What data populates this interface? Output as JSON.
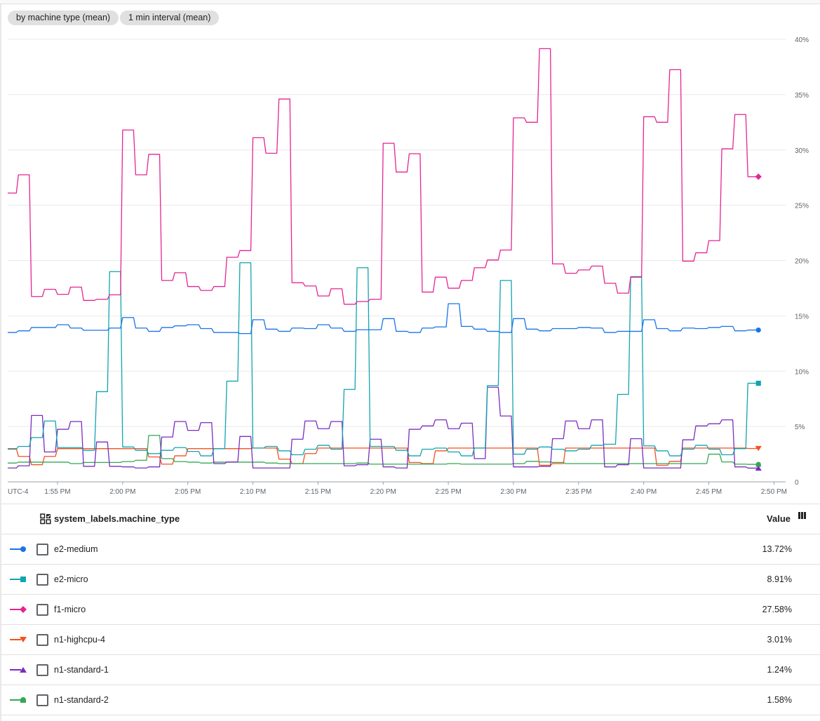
{
  "chips": [
    "by machine type (mean)",
    "1 min interval (mean)"
  ],
  "legend": {
    "column_title": "system_labels.machine_type",
    "value_title": "Value",
    "rows": [
      {
        "name": "e2-medium",
        "value": "13.72%",
        "color": "#1a73e8",
        "marker": "circle"
      },
      {
        "name": "e2-micro",
        "value": "8.91%",
        "color": "#12a4af",
        "marker": "square"
      },
      {
        "name": "f1-micro",
        "value": "27.58%",
        "color": "#e52592",
        "marker": "diamond"
      },
      {
        "name": "n1-highcpu-4",
        "value": "3.01%",
        "color": "#f4511e",
        "marker": "triangle-down"
      },
      {
        "name": "n1-standard-1",
        "value": "1.24%",
        "color": "#7b2cbf",
        "marker": "triangle-up"
      },
      {
        "name": "n1-standard-2",
        "value": "1.58%",
        "color": "#34a853",
        "marker": "tombstone"
      }
    ]
  },
  "chart_data": {
    "type": "line",
    "interpolation": "step",
    "timezone_label": "UTC-4",
    "x_tick_labels": [
      "1:55 PM",
      "2:00 PM",
      "2:05 PM",
      "2:10 PM",
      "2:15 PM",
      "2:20 PM",
      "2:25 PM",
      "2:30 PM",
      "2:35 PM",
      "2:40 PM",
      "2:45 PM",
      "2:50 PM"
    ],
    "y_tick_labels": [
      "0",
      "5%",
      "10%",
      "15%",
      "20%",
      "25%",
      "30%",
      "35%",
      "40%"
    ],
    "ylim": [
      0,
      40
    ],
    "y_unit": "%",
    "grid": true,
    "legend_placement": "bottom table",
    "x": [
      "1:51 PM",
      "1:52 PM",
      "1:53 PM",
      "1:54 PM",
      "1:55 PM",
      "1:56 PM",
      "1:57 PM",
      "1:58 PM",
      "1:59 PM",
      "2:00 PM",
      "2:01 PM",
      "2:02 PM",
      "2:03 PM",
      "2:04 PM",
      "2:05 PM",
      "2:06 PM",
      "2:07 PM",
      "2:08 PM",
      "2:09 PM",
      "2:10 PM",
      "2:11 PM",
      "2:12 PM",
      "2:13 PM",
      "2:14 PM",
      "2:15 PM",
      "2:16 PM",
      "2:17 PM",
      "2:18 PM",
      "2:19 PM",
      "2:20 PM",
      "2:21 PM",
      "2:22 PM",
      "2:23 PM",
      "2:24 PM",
      "2:25 PM",
      "2:26 PM",
      "2:27 PM",
      "2:28 PM",
      "2:29 PM",
      "2:30 PM",
      "2:31 PM",
      "2:32 PM",
      "2:33 PM",
      "2:34 PM",
      "2:35 PM",
      "2:36 PM",
      "2:37 PM",
      "2:38 PM",
      "2:39 PM",
      "2:40 PM",
      "2:41 PM",
      "2:42 PM",
      "2:43 PM",
      "2:44 PM",
      "2:45 PM",
      "2:46 PM",
      "2:47 PM",
      "2:48 PM"
    ],
    "series": [
      {
        "name": "e2-medium",
        "values": [
          13.5,
          13.65,
          13.95,
          13.95,
          14.2,
          13.9,
          13.7,
          13.7,
          13.9,
          14.85,
          13.9,
          13.6,
          13.95,
          14.1,
          14.2,
          13.85,
          13.5,
          13.5,
          13.4,
          14.65,
          13.8,
          13.6,
          13.9,
          13.85,
          14.2,
          13.9,
          13.6,
          13.75,
          13.75,
          14.75,
          13.6,
          13.5,
          13.9,
          14.0,
          16.1,
          14.05,
          13.8,
          13.6,
          13.5,
          14.75,
          13.8,
          13.65,
          13.85,
          13.85,
          13.95,
          13.9,
          13.5,
          13.6,
          13.6,
          14.65,
          13.85,
          13.65,
          13.9,
          13.85,
          13.95,
          14.05,
          13.65,
          13.72
        ]
      },
      {
        "name": "e2-micro",
        "values": [
          2.95,
          3.2,
          4.0,
          5.5,
          3.1,
          3.1,
          2.85,
          8.15,
          19.0,
          3.15,
          2.85,
          2.55,
          2.85,
          3.1,
          2.75,
          2.35,
          3.0,
          9.1,
          19.8,
          3.05,
          3.2,
          2.8,
          2.45,
          2.95,
          3.3,
          2.95,
          8.35,
          19.35,
          3.2,
          3.2,
          2.85,
          2.35,
          2.95,
          3.05,
          2.7,
          2.35,
          3.05,
          8.7,
          18.2,
          2.5,
          2.95,
          3.15,
          2.95,
          2.8,
          2.95,
          3.3,
          3.4,
          7.9,
          18.55,
          3.25,
          2.8,
          2.35,
          2.95,
          3.3,
          2.95,
          2.45,
          3.0,
          8.91
        ]
      },
      {
        "name": "f1-micro",
        "values": [
          26.1,
          27.75,
          16.75,
          17.4,
          16.95,
          17.6,
          16.4,
          16.5,
          16.9,
          31.8,
          27.75,
          29.6,
          18.2,
          18.9,
          17.65,
          17.3,
          17.65,
          20.3,
          20.9,
          31.1,
          29.7,
          34.6,
          18.0,
          17.7,
          16.8,
          17.45,
          16.05,
          16.3,
          16.5,
          30.6,
          28.0,
          29.65,
          17.15,
          18.5,
          17.5,
          18.2,
          19.35,
          20.05,
          20.95,
          32.9,
          32.5,
          39.15,
          19.7,
          18.85,
          19.15,
          19.5,
          17.95,
          17.05,
          18.5,
          33.0,
          32.5,
          37.25,
          19.95,
          20.7,
          21.8,
          30.1,
          33.2,
          27.58
        ]
      },
      {
        "name": "n1-highcpu-4",
        "values": [
          3.0,
          2.3,
          1.55,
          2.3,
          3.0,
          3.0,
          3.0,
          3.0,
          3.0,
          3.0,
          3.0,
          2.25,
          1.6,
          2.35,
          3.0,
          3.0,
          3.0,
          3.0,
          3.0,
          3.05,
          3.05,
          2.05,
          1.65,
          2.55,
          3.05,
          3.05,
          3.05,
          3.05,
          3.05,
          3.05,
          3.05,
          1.75,
          1.65,
          2.8,
          3.05,
          3.05,
          3.05,
          3.05,
          3.05,
          3.05,
          3.05,
          1.5,
          1.65,
          3.05,
          3.05,
          3.05,
          3.05,
          3.05,
          3.05,
          3.05,
          1.5,
          1.85,
          3.05,
          3.05,
          3.05,
          3.05,
          3.05,
          3.01
        ]
      },
      {
        "name": "n1-standard-1",
        "values": [
          1.25,
          1.45,
          6.0,
          2.7,
          4.75,
          5.45,
          1.4,
          3.6,
          1.4,
          1.35,
          1.25,
          1.35,
          4.05,
          5.45,
          4.65,
          5.35,
          1.65,
          1.8,
          4.1,
          1.25,
          1.25,
          1.25,
          3.85,
          5.5,
          4.8,
          5.45,
          1.45,
          1.55,
          3.85,
          1.35,
          1.25,
          4.75,
          5.05,
          5.6,
          4.8,
          5.3,
          2.1,
          8.55,
          5.95,
          1.35,
          1.35,
          1.4,
          3.9,
          5.5,
          4.8,
          5.6,
          1.35,
          1.55,
          3.9,
          1.25,
          1.25,
          1.25,
          3.8,
          5.05,
          5.25,
          5.6,
          1.35,
          1.24
        ]
      },
      {
        "name": "n1-standard-2",
        "values": [
          1.7,
          1.78,
          1.78,
          1.78,
          1.78,
          1.65,
          1.75,
          1.75,
          1.75,
          1.83,
          1.95,
          4.2,
          2.1,
          1.83,
          1.78,
          1.7,
          1.78,
          1.78,
          1.78,
          1.78,
          1.7,
          1.65,
          1.65,
          1.65,
          1.65,
          1.65,
          1.65,
          1.7,
          1.6,
          1.6,
          1.6,
          1.6,
          1.6,
          1.6,
          1.65,
          1.6,
          1.6,
          1.6,
          1.6,
          1.65,
          1.85,
          1.8,
          1.75,
          1.65,
          1.65,
          1.65,
          1.65,
          1.65,
          1.65,
          1.65,
          1.65,
          1.65,
          1.65,
          1.65,
          2.5,
          1.8,
          1.6,
          1.58
        ]
      }
    ]
  }
}
